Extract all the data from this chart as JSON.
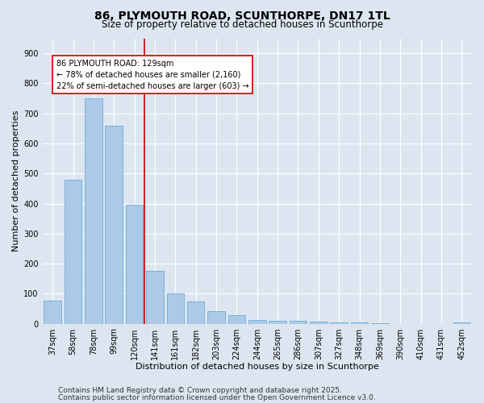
{
  "title_line1": "86, PLYMOUTH ROAD, SCUNTHORPE, DN17 1TL",
  "title_line2": "Size of property relative to detached houses in Scunthorpe",
  "xlabel": "Distribution of detached houses by size in Scunthorpe",
  "ylabel": "Number of detached properties",
  "categories": [
    "37sqm",
    "58sqm",
    "78sqm",
    "99sqm",
    "120sqm",
    "141sqm",
    "161sqm",
    "182sqm",
    "203sqm",
    "224sqm",
    "244sqm",
    "265sqm",
    "286sqm",
    "307sqm",
    "327sqm",
    "348sqm",
    "369sqm",
    "390sqm",
    "410sqm",
    "431sqm",
    "452sqm"
  ],
  "values": [
    78,
    478,
    750,
    660,
    395,
    175,
    100,
    75,
    42,
    28,
    13,
    10,
    9,
    6,
    4,
    3,
    1,
    0,
    0,
    0,
    5
  ],
  "bar_color": "#adc9e8",
  "bar_edge_color": "#6baed6",
  "vline_x": 4.5,
  "annotation_line1": "86 PLYMOUTH ROAD: 129sqm",
  "annotation_line2": "← 78% of detached houses are smaller (2,160)",
  "annotation_line3": "22% of semi-detached houses are larger (603) →",
  "annotation_box_facecolor": "#ffffff",
  "annotation_box_edgecolor": "#cc0000",
  "vline_color": "#cc0000",
  "ylim": [
    0,
    950
  ],
  "yticks": [
    0,
    100,
    200,
    300,
    400,
    500,
    600,
    700,
    800,
    900
  ],
  "background_color": "#dde6f0",
  "plot_bg_color": "#dde6f0",
  "grid_color": "#ffffff",
  "footer_line1": "Contains HM Land Registry data © Crown copyright and database right 2025.",
  "footer_line2": "Contains public sector information licensed under the Open Government Licence v3.0.",
  "title_fontsize": 10,
  "subtitle_fontsize": 8.5,
  "axis_label_fontsize": 8,
  "tick_fontsize": 7,
  "annotation_fontsize": 7,
  "footer_fontsize": 6.5
}
